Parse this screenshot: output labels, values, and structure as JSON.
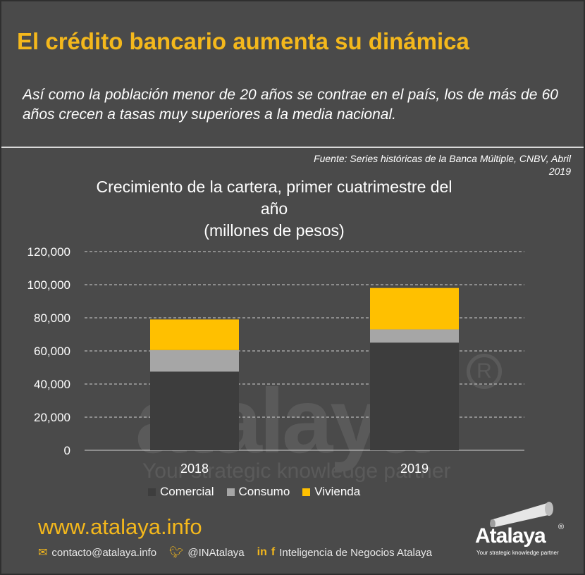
{
  "header": {
    "title": "El crédito bancario aumenta su dinámica",
    "subtitle": "Así como la población menor de 20 años se contrae en el país, los de más de 60 años crecen a tasas muy superiores a la media nacional."
  },
  "source": {
    "line1": "Fuente:  Series históricas de la Banca Múltiple, CNBV, Abril",
    "line2": "2019"
  },
  "watermark": {
    "word": "atalaya",
    "tagline": "Your strategic knowledge partner"
  },
  "chart_data": {
    "type": "bar",
    "stacked": true,
    "title": "Crecimiento de la cartera, primer cuatrimestre del año (millones de pesos)",
    "title_lines": [
      "Crecimiento de la cartera, primer cuatrimestre del",
      "año",
      "(millones de pesos)"
    ],
    "categories": [
      "2018",
      "2019"
    ],
    "series": [
      {
        "name": "Comercial",
        "color": "#3d3d3d",
        "values": [
          47500,
          65000
        ]
      },
      {
        "name": "Consumo",
        "color": "#a6a6a6",
        "values": [
          13000,
          8000
        ]
      },
      {
        "name": "Vivienda",
        "color": "#ffc000",
        "values": [
          18500,
          25000
        ]
      }
    ],
    "y_ticks": [
      "0",
      "20,000",
      "40,000",
      "60,000",
      "80,000",
      "100,000",
      "120,000"
    ],
    "ylim": [
      0,
      120000
    ],
    "grid": true,
    "legend_position": "bottom"
  },
  "footer": {
    "url": "www.atalaya.info",
    "email": "contacto@atalaya.info",
    "twitter": "@INAtalaya",
    "social_label": "Inteligencia de Negocios Atalaya",
    "logo_word": "Atalaya",
    "logo_tagline": "Your strategic knowledge partner"
  }
}
